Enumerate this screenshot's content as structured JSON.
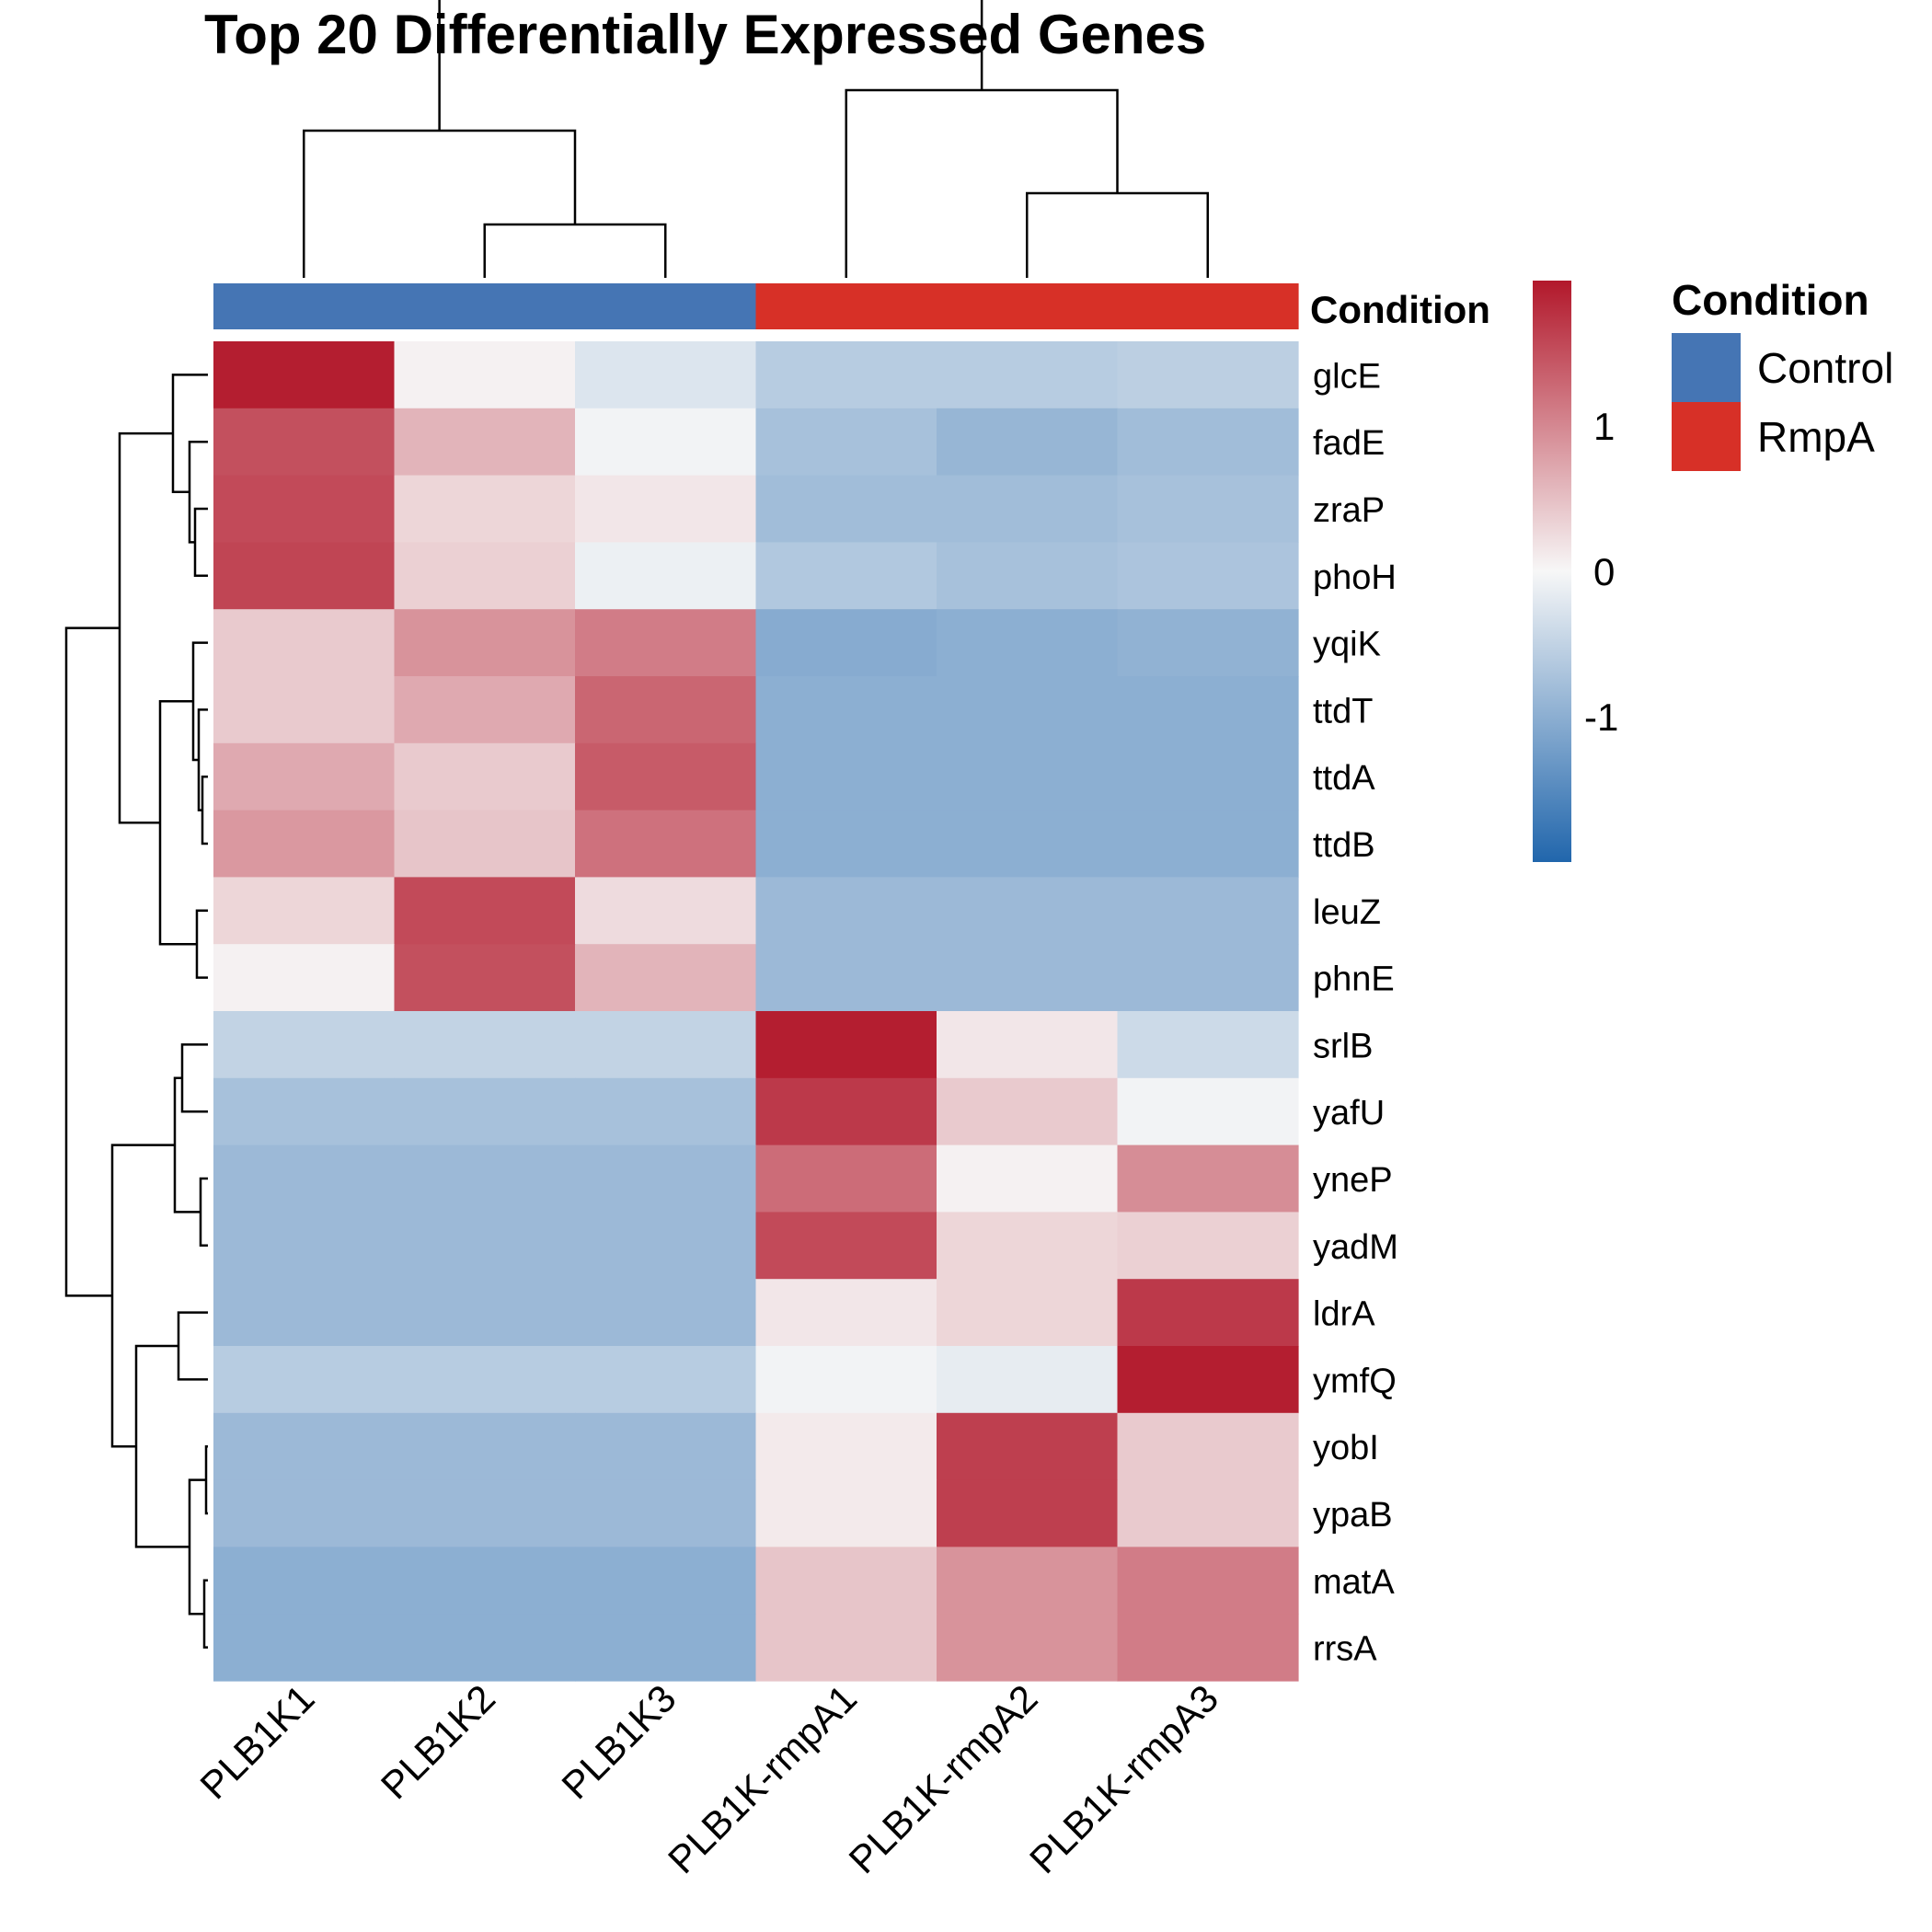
{
  "chart_data": {
    "type": "heatmap",
    "title": "Top 20 Differentially Expressed Genes",
    "columns": [
      "PLB1K1",
      "PLB1K2",
      "PLB1K3",
      "PLB1K-rmpA1",
      "PLB1K-rmpA2",
      "PLB1K-rmpA3"
    ],
    "rows": [
      "glcE",
      "fadE",
      "zraP",
      "phoH",
      "yqiK",
      "ttdT",
      "ttdA",
      "ttdB",
      "leuZ",
      "phnE",
      "srlB",
      "yafU",
      "yneP",
      "yadM",
      "ldrA",
      "ymfQ",
      "yobI",
      "ypaB",
      "matA",
      "rrsA"
    ],
    "values": [
      [
        1.95,
        0.05,
        -0.25,
        -0.6,
        -0.6,
        -0.55
      ],
      [
        1.5,
        0.6,
        -0.05,
        -0.75,
        -0.9,
        -0.8
      ],
      [
        1.55,
        0.3,
        0.15,
        -0.8,
        -0.8,
        -0.75
      ],
      [
        1.6,
        0.35,
        -0.1,
        -0.65,
        -0.75,
        -0.7
      ],
      [
        0.4,
        0.9,
        1.1,
        -1.05,
        -1.0,
        -0.95
      ],
      [
        0.4,
        0.7,
        1.3,
        -1.0,
        -1.0,
        -1.0
      ],
      [
        0.7,
        0.4,
        1.4,
        -1.0,
        -1.0,
        -1.0
      ],
      [
        0.85,
        0.45,
        1.2,
        -1.0,
        -1.0,
        -1.0
      ],
      [
        0.3,
        1.55,
        0.25,
        -0.85,
        -0.85,
        -0.85
      ],
      [
        0.05,
        1.5,
        0.6,
        -0.85,
        -0.85,
        -0.85
      ],
      [
        -0.5,
        -0.5,
        -0.5,
        1.95,
        0.15,
        -0.4
      ],
      [
        -0.75,
        -0.75,
        -0.75,
        1.7,
        0.4,
        -0.05
      ],
      [
        -0.85,
        -0.85,
        -0.85,
        1.25,
        0.05,
        0.95
      ],
      [
        -0.85,
        -0.85,
        -0.85,
        1.55,
        0.3,
        0.35
      ],
      [
        -0.85,
        -0.85,
        -0.85,
        0.15,
        0.3,
        1.7
      ],
      [
        -0.6,
        -0.6,
        -0.6,
        -0.05,
        -0.15,
        1.95
      ],
      [
        -0.85,
        -0.85,
        -0.85,
        0.12,
        1.65,
        0.4
      ],
      [
        -0.85,
        -0.85,
        -0.85,
        0.12,
        1.65,
        0.4
      ],
      [
        -1.0,
        -1.0,
        -1.0,
        0.45,
        0.9,
        1.1
      ],
      [
        -1.0,
        -1.0,
        -1.0,
        0.45,
        0.9,
        1.1
      ]
    ],
    "column_annotation": {
      "title": "Condition",
      "values": [
        "Control",
        "Control",
        "Control",
        "RmpA",
        "RmpA",
        "RmpA"
      ],
      "levels": [
        "Control",
        "RmpA"
      ],
      "colors": {
        "Control": "#4575B4",
        "RmpA": "#D73027"
      }
    },
    "color_scale": {
      "low": "#2166AC",
      "mid": "#F7F7F7",
      "high": "#B2182B",
      "domain": [
        -2,
        2
      ],
      "tick_values": [
        1,
        0,
        -1
      ],
      "tick_labels": [
        "1",
        "0",
        "-1"
      ]
    },
    "column_dendrogram": [
      [
        1,
        2
      ],
      [
        0,
        "c0"
      ],
      [
        4,
        5
      ],
      [
        3,
        "c2"
      ],
      [
        "c1",
        "c3"
      ]
    ],
    "row_dendrogram": [
      [
        2,
        3
      ],
      [
        1,
        "r0"
      ],
      [
        0,
        "r1"
      ],
      [
        6,
        7
      ],
      [
        5,
        "r3"
      ],
      [
        4,
        "r4"
      ],
      [
        8,
        9
      ],
      [
        "r5",
        "r6"
      ],
      [
        "r2",
        "r7"
      ],
      [
        10,
        11
      ],
      [
        12,
        13
      ],
      [
        "r9",
        "r10"
      ],
      [
        14,
        15
      ],
      [
        16,
        17
      ],
      [
        18,
        19
      ],
      [
        "r13",
        "r14"
      ],
      [
        "r12",
        "r15"
      ],
      [
        "r11",
        "r16"
      ],
      [
        "r8",
        "r17"
      ]
    ],
    "legend": {
      "title": "Condition",
      "items": [
        "Control",
        "RmpA"
      ],
      "position": "right"
    }
  }
}
